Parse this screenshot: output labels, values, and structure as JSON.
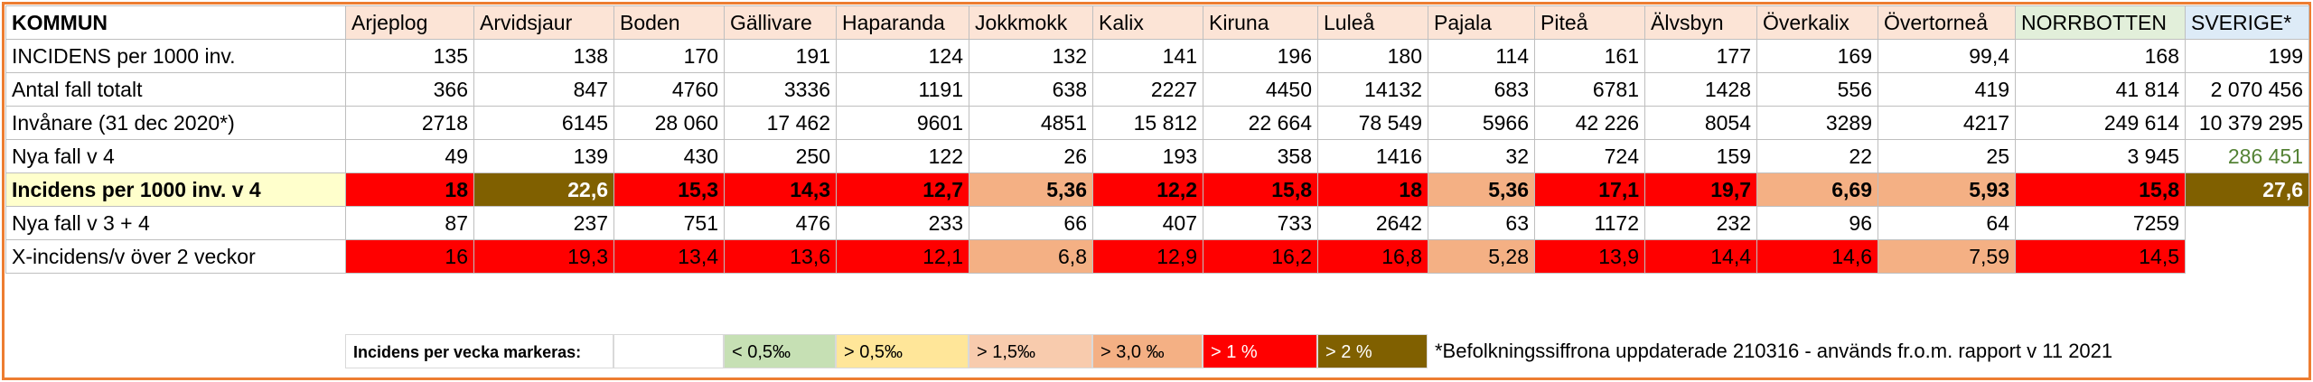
{
  "table": {
    "header": {
      "label": "KOMMUN",
      "columns": [
        "Arjeplog",
        "Arvidsjaur",
        "Boden",
        "Gällivare",
        "Haparanda",
        "Jokkmokk",
        "Kalix",
        "Kiruna",
        "Luleå",
        "Pajala",
        "Piteå",
        "Älvsbyn",
        "Överkalix",
        "Övertorneå",
        "NORRBOTTEN",
        "SVERIGE*"
      ]
    },
    "rows": [
      {
        "label": "INCIDENS per 1000 inv.",
        "cells": [
          "135",
          "138",
          "170",
          "191",
          "124",
          "132",
          "141",
          "196",
          "180",
          "114",
          "161",
          "177",
          "169",
          "99,4",
          "168",
          "199"
        ]
      },
      {
        "label": "Antal fall totalt",
        "cells": [
          "366",
          "847",
          "4760",
          "3336",
          "1191",
          "638",
          "2227",
          "4450",
          "14132",
          "683",
          "6781",
          "1428",
          "556",
          "419",
          "41 814",
          "2 070 456"
        ]
      },
      {
        "label": "Invånare (31 dec 2020*)",
        "cells": [
          "2718",
          "6145",
          "28 060",
          "17 462",
          "9601",
          "4851",
          "15 812",
          "22 664",
          "78 549",
          "5966",
          "42 226",
          "8054",
          "3289",
          "4217",
          "249 614",
          "10 379 295"
        ]
      },
      {
        "label": "Nya fall v 4",
        "cells": [
          "49",
          "139",
          "430",
          "250",
          "122",
          "26",
          "193",
          "358",
          "1416",
          "32",
          "724",
          "159",
          "22",
          "25",
          "3 945",
          "286 451"
        ]
      },
      {
        "label": "Incidens per 1000 inv. v 4",
        "cells": [
          "18",
          "22,6",
          "15,3",
          "14,3",
          "12,7",
          "5,36",
          "12,2",
          "15,8",
          "18",
          "5,36",
          "17,1",
          "19,7",
          "6,69",
          "5,93",
          "15,8",
          "27,6"
        ]
      },
      {
        "label": "Nya fall v 3 + 4",
        "cells": [
          "87",
          "237",
          "751",
          "476",
          "233",
          "66",
          "407",
          "733",
          "2642",
          "63",
          "1172",
          "232",
          "96",
          "64",
          "7259"
        ]
      },
      {
        "label": "X-incidens/v över 2 veckor",
        "cells": [
          "16",
          "19,3",
          "13,4",
          "13,6",
          "12,1",
          "6,8",
          "12,9",
          "16,2",
          "16,8",
          "5,28",
          "13,9",
          "14,4",
          "14,6",
          "7,59",
          "14,5"
        ]
      }
    ]
  },
  "legend": {
    "title": "Incidens per vecka markeras:",
    "items": [
      "< 0,5‰",
      "> 0,5‰",
      "> 1,5‰",
      "> 3,0 ‰",
      "> 1 %",
      "> 2 %"
    ]
  },
  "note": "*Befolkningssiffrona uppdaterade 210316 - används fr.o.m. rapport v 11 2021"
}
